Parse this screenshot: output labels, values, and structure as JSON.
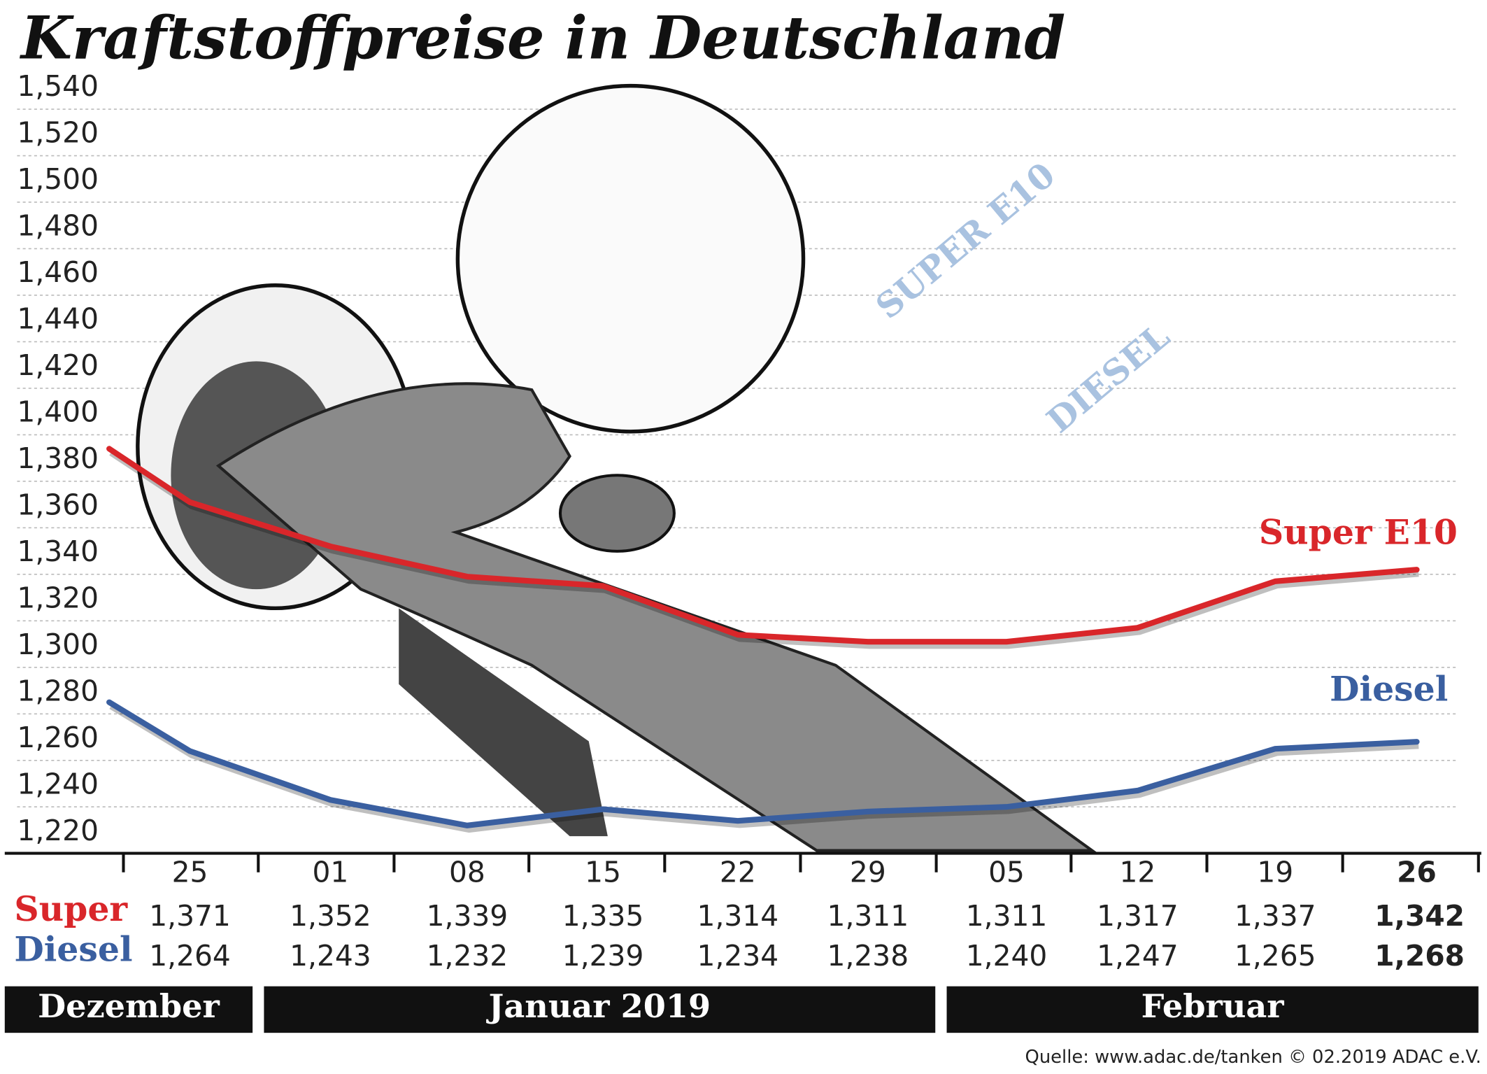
{
  "chart_data": {
    "type": "line",
    "title": "Kraftstoffpreise in Deutschland",
    "categories": [
      null,
      "25",
      "01",
      "08",
      "15",
      "22",
      "29",
      "05",
      "12",
      "19",
      "26"
    ],
    "months": [
      "Dezember",
      "Januar 2019",
      "Februar"
    ],
    "series": [
      {
        "name": "Super E10",
        "row_label": "Super",
        "color": "#d9262a",
        "values": [
          1.394,
          1.371,
          1.352,
          1.339,
          1.335,
          1.314,
          1.311,
          1.311,
          1.317,
          1.337,
          1.342
        ],
        "value_labels": [
          null,
          "1,371",
          "1,352",
          "1,339",
          "1,335",
          "1,314",
          "1,311",
          "1,311",
          "1,317",
          "1,337",
          "1,342"
        ]
      },
      {
        "name": "Diesel",
        "row_label": "Diesel",
        "color": "#3a5fa0",
        "values": [
          1.285,
          1.264,
          1.243,
          1.232,
          1.239,
          1.234,
          1.238,
          1.24,
          1.247,
          1.265,
          1.268
        ],
        "value_labels": [
          null,
          "1,264",
          "1,243",
          "1,232",
          "1,239",
          "1,234",
          "1,238",
          "1,240",
          "1,247",
          "1,265",
          "1,268"
        ]
      }
    ],
    "ylim": [
      1.218,
      1.548
    ],
    "yticks": [
      {
        "value": 1.22,
        "label": "1,220"
      },
      {
        "value": 1.24,
        "label": "1,240"
      },
      {
        "value": 1.26,
        "label": "1,260"
      },
      {
        "value": 1.28,
        "label": "1,280"
      },
      {
        "value": 1.3,
        "label": "1,300"
      },
      {
        "value": 1.32,
        "label": "1,320"
      },
      {
        "value": 1.34,
        "label": "1,340"
      },
      {
        "value": 1.36,
        "label": "1,360"
      },
      {
        "value": 1.38,
        "label": "1,380"
      },
      {
        "value": 1.4,
        "label": "1,400"
      },
      {
        "value": 1.42,
        "label": "1,420"
      },
      {
        "value": 1.44,
        "label": "1,440"
      },
      {
        "value": 1.46,
        "label": "1,460"
      },
      {
        "value": 1.48,
        "label": "1,480"
      },
      {
        "value": 1.5,
        "label": "1,500"
      },
      {
        "value": 1.52,
        "label": "1,520"
      },
      {
        "value": 1.54,
        "label": "1,540"
      }
    ],
    "grid": true,
    "decor_labels": [
      "SUPER E10",
      "DIESEL"
    ],
    "source": "Quelle: www.adac.de/tanken   © 02.2019  ADAC e.V."
  }
}
